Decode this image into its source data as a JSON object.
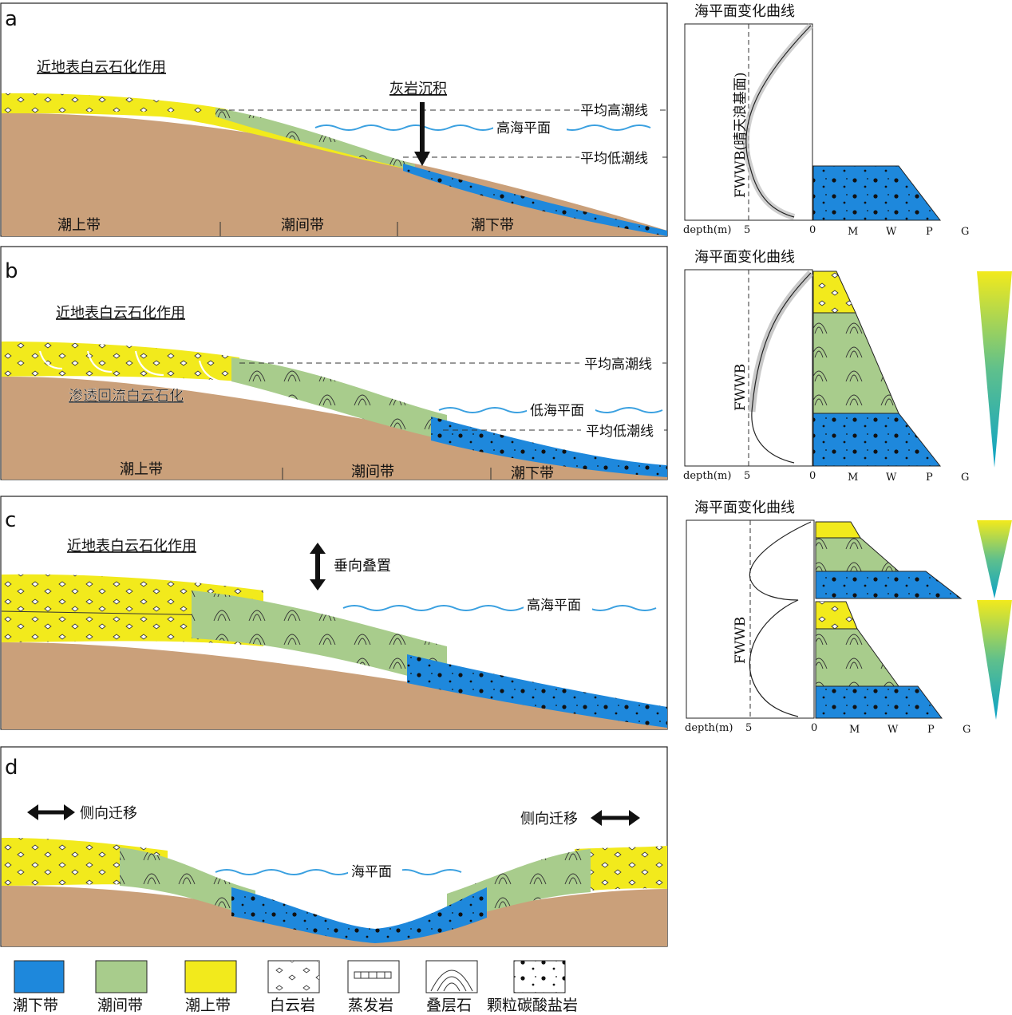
{
  "panels": {
    "a": {
      "letter": "a",
      "process": "近地表白云石化作用",
      "mean_high_tide": "平均高潮线",
      "sea_level": "高海平面",
      "mean_low_tide": "平均低潮线",
      "deposition": "灰岩沉积",
      "zone_supra": "潮上带",
      "zone_inter": "潮间带",
      "zone_sub": "潮下带"
    },
    "b": {
      "letter": "b",
      "process": "近地表白云石化作用",
      "reflux": "渗透回流白云石化",
      "mean_high_tide": "平均高潮线",
      "sea_level": "低海平面",
      "mean_low_tide": "平均低潮线",
      "zone_supra": "潮上带",
      "zone_inter": "潮间带",
      "zone_sub": "潮下带"
    },
    "c": {
      "letter": "c",
      "process": "近地表白云石化作用",
      "stacking": "垂向叠置",
      "sea_level": "高海平面"
    },
    "d": {
      "letter": "d",
      "lateral_left": "侧向迁移",
      "lateral_right": "侧向迁移",
      "sea_level": "海平面"
    }
  },
  "sea_level_curves": {
    "title": "海平面变化曲线",
    "fwwb_a": "FWWB(晴天浪基面)",
    "fwwb": "FWWB",
    "depth_label": "depth(m)",
    "depth_value": "5",
    "grain_axis": [
      "0",
      "M",
      "W",
      "P",
      "G"
    ]
  },
  "legend": {
    "items": [
      {
        "label": "潮下带"
      },
      {
        "label": "潮间带"
      },
      {
        "label": "潮上带"
      },
      {
        "label": "白云岩"
      },
      {
        "label": "蒸发岩"
      },
      {
        "label": "叠层石"
      },
      {
        "label": "颗粒碳酸盐岩"
      }
    ]
  },
  "colors": {
    "subtidal": "#1e88dc",
    "intertidal": "#a8cc8c",
    "supratidal": "#f2ea1c",
    "substrate": "#caa07a",
    "sea": "#3aa0e0"
  }
}
